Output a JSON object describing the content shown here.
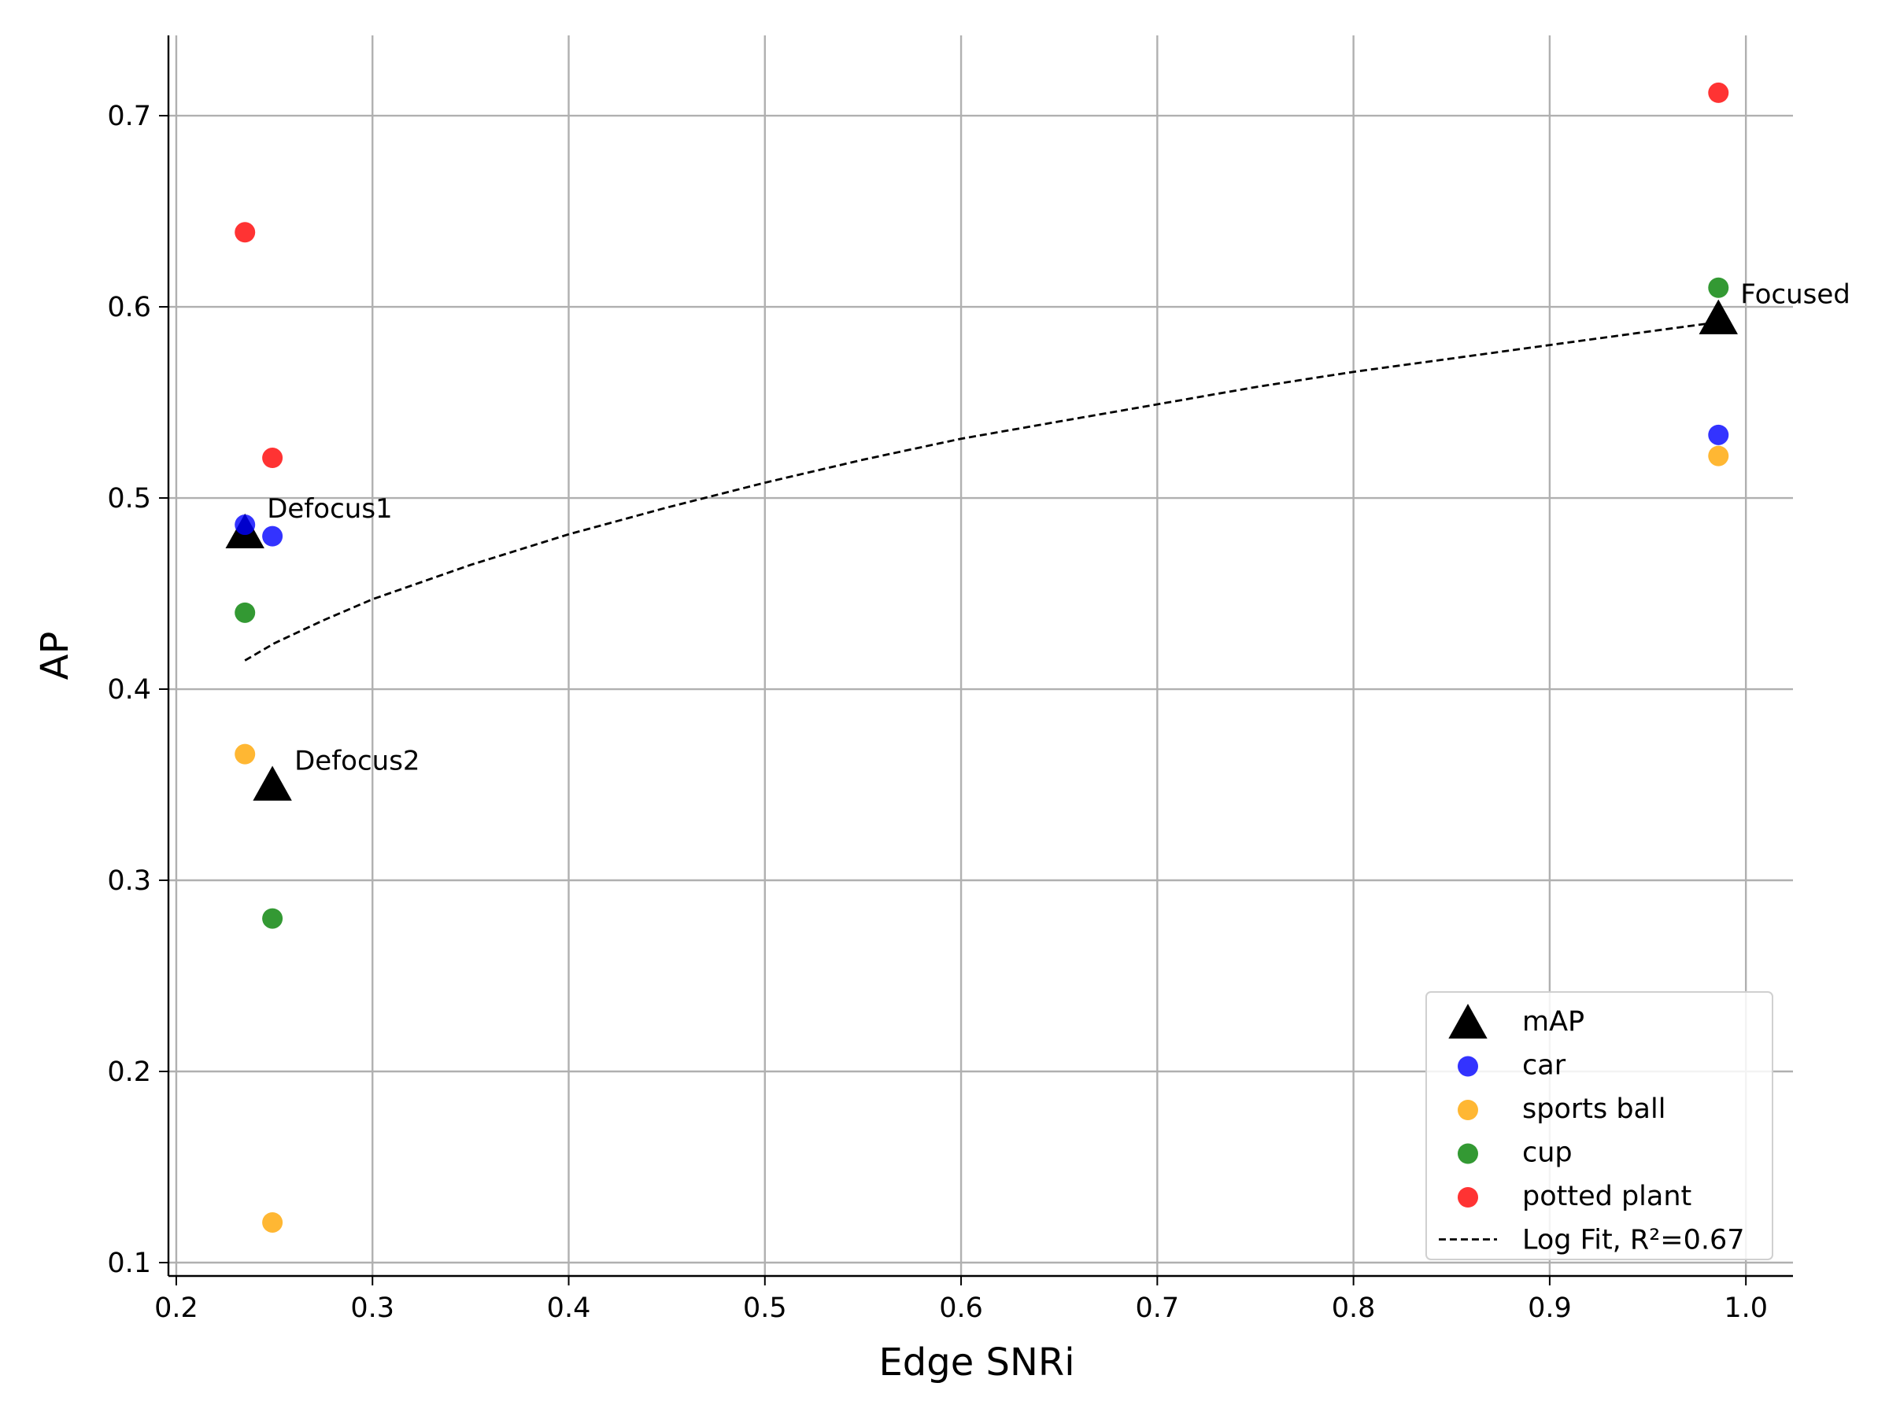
{
  "chart_data": {
    "type": "scatter",
    "title": "",
    "xlabel": "Edge SNRi",
    "ylabel": "AP",
    "xlim": [
      0.196,
      1.024
    ],
    "ylim": [
      0.093,
      0.742
    ],
    "xticks": [
      0.2,
      0.3,
      0.4,
      0.5,
      0.6,
      0.7,
      0.8,
      0.9,
      1.0
    ],
    "xtick_labels": [
      "0.2",
      "0.3",
      "0.4",
      "0.5",
      "0.6",
      "0.7",
      "0.8",
      "0.9",
      "1.0"
    ],
    "yticks": [
      0.1,
      0.2,
      0.3,
      0.4,
      0.5,
      0.6,
      0.7
    ],
    "ytick_labels": [
      "0.1",
      "0.2",
      "0.3",
      "0.4",
      "0.5",
      "0.6",
      "0.7"
    ],
    "grid": true,
    "legend_position": "lower-right",
    "series": [
      {
        "name": "mAP",
        "marker": "triangle",
        "color": "#000000",
        "points": [
          [
            0.235,
            0.482
          ],
          [
            0.249,
            0.35
          ],
          [
            0.986,
            0.594
          ]
        ]
      },
      {
        "name": "car",
        "marker": "circle",
        "color": "#0000ff",
        "points": [
          [
            0.235,
            0.486
          ],
          [
            0.249,
            0.48
          ],
          [
            0.986,
            0.533
          ]
        ]
      },
      {
        "name": "sports ball",
        "marker": "circle",
        "color": "#ffa500",
        "points": [
          [
            0.235,
            0.366
          ],
          [
            0.249,
            0.121
          ],
          [
            0.986,
            0.522
          ]
        ]
      },
      {
        "name": "cup",
        "marker": "circle",
        "color": "#008000",
        "points": [
          [
            0.235,
            0.44
          ],
          [
            0.249,
            0.28
          ],
          [
            0.986,
            0.61
          ]
        ]
      },
      {
        "name": "potted plant",
        "marker": "circle",
        "color": "#ff0000",
        "points": [
          [
            0.235,
            0.639
          ],
          [
            0.249,
            0.521
          ],
          [
            0.986,
            0.712
          ]
        ]
      }
    ],
    "fit": {
      "name": "Log Fit, R²=0.67",
      "style": "dashed",
      "color": "#000000",
      "x": [
        0.235,
        0.25,
        0.275,
        0.3,
        0.35,
        0.4,
        0.45,
        0.5,
        0.55,
        0.6,
        0.65,
        0.7,
        0.75,
        0.8,
        0.85,
        0.9,
        0.95,
        0.986
      ],
      "y": [
        0.415,
        0.424,
        0.436,
        0.447,
        0.465,
        0.481,
        0.495,
        0.508,
        0.52,
        0.531,
        0.54,
        0.549,
        0.558,
        0.566,
        0.573,
        0.58,
        0.587,
        0.592
      ]
    },
    "annotations": [
      {
        "text": "Defocus1",
        "x": 0.235,
        "y": 0.482
      },
      {
        "text": "Defocus2",
        "x": 0.249,
        "y": 0.35
      },
      {
        "text": "Focused",
        "x": 0.986,
        "y": 0.594
      }
    ]
  }
}
